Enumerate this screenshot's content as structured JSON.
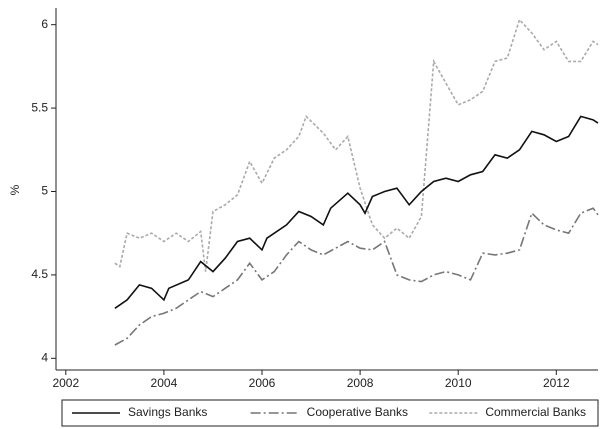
{
  "chart_data": {
    "type": "line",
    "ylabel": "%",
    "xlim": [
      2001.8,
      2012.85
    ],
    "xticks": [
      2002,
      2004,
      2006,
      2008,
      2010,
      2012
    ],
    "ylim": [
      3.93,
      6.1
    ],
    "yticks": [
      4,
      4.5,
      5,
      5.5,
      6
    ],
    "grid": false,
    "legend": "bottom",
    "series": [
      {
        "name": "Savings Banks",
        "color": "#111111",
        "style": "solid",
        "x": [
          2003.0,
          2003.25,
          2003.5,
          2003.75,
          2004.0,
          2004.1,
          2004.5,
          2004.75,
          2005.0,
          2005.25,
          2005.5,
          2005.75,
          2006.0,
          2006.1,
          2006.5,
          2006.75,
          2007.0,
          2007.25,
          2007.4,
          2007.75,
          2008.0,
          2008.1,
          2008.25,
          2008.5,
          2008.75,
          2009.0,
          2009.25,
          2009.5,
          2009.75,
          2010.0,
          2010.25,
          2010.5,
          2010.75,
          2011.0,
          2011.25,
          2011.5,
          2011.75,
          2012.0,
          2012.25,
          2012.5,
          2012.75,
          2012.85
        ],
        "values": [
          4.3,
          4.35,
          4.44,
          4.42,
          4.35,
          4.42,
          4.47,
          4.58,
          4.52,
          4.6,
          4.7,
          4.72,
          4.65,
          4.72,
          4.8,
          4.88,
          4.85,
          4.8,
          4.9,
          4.99,
          4.92,
          4.87,
          4.97,
          5.0,
          5.02,
          4.92,
          5.0,
          5.06,
          5.08,
          5.06,
          5.1,
          5.12,
          5.22,
          5.2,
          5.25,
          5.36,
          5.34,
          5.3,
          5.33,
          5.45,
          5.43,
          5.41
        ]
      },
      {
        "name": "Cooperative Banks",
        "color": "#777777",
        "style": "dashdot",
        "x": [
          2003.0,
          2003.25,
          2003.5,
          2003.75,
          2004.0,
          2004.25,
          2004.5,
          2004.75,
          2005.0,
          2005.25,
          2005.5,
          2005.75,
          2006.0,
          2006.25,
          2006.5,
          2006.75,
          2007.0,
          2007.25,
          2007.5,
          2007.75,
          2008.0,
          2008.25,
          2008.5,
          2008.75,
          2009.0,
          2009.25,
          2009.5,
          2009.75,
          2010.0,
          2010.25,
          2010.5,
          2010.75,
          2011.0,
          2011.25,
          2011.5,
          2011.75,
          2012.0,
          2012.25,
          2012.5,
          2012.75,
          2012.85
        ],
        "values": [
          4.08,
          4.12,
          4.2,
          4.25,
          4.27,
          4.3,
          4.35,
          4.4,
          4.37,
          4.42,
          4.47,
          4.57,
          4.47,
          4.52,
          4.62,
          4.7,
          4.65,
          4.62,
          4.66,
          4.7,
          4.66,
          4.65,
          4.7,
          4.5,
          4.47,
          4.46,
          4.5,
          4.52,
          4.5,
          4.47,
          4.63,
          4.62,
          4.63,
          4.65,
          4.87,
          4.8,
          4.77,
          4.75,
          4.87,
          4.9,
          4.86
        ]
      },
      {
        "name": "Commercial Banks",
        "color": "#aaaaaa",
        "style": "dot",
        "x": [
          2003.0,
          2003.1,
          2003.25,
          2003.5,
          2003.75,
          2004.0,
          2004.25,
          2004.5,
          2004.75,
          2004.85,
          2005.0,
          2005.25,
          2005.5,
          2005.75,
          2006.0,
          2006.25,
          2006.5,
          2006.75,
          2006.9,
          2007.25,
          2007.5,
          2007.75,
          2008.0,
          2008.25,
          2008.5,
          2008.75,
          2009.0,
          2009.25,
          2009.5,
          2009.75,
          2010.0,
          2010.25,
          2010.5,
          2010.75,
          2011.0,
          2011.25,
          2011.5,
          2011.75,
          2012.0,
          2012.25,
          2012.5,
          2012.75,
          2012.85
        ],
        "values": [
          4.57,
          4.55,
          4.75,
          4.72,
          4.75,
          4.7,
          4.75,
          4.7,
          4.76,
          4.52,
          4.88,
          4.92,
          4.98,
          5.18,
          5.05,
          5.2,
          5.25,
          5.33,
          5.45,
          5.35,
          5.25,
          5.33,
          5.02,
          4.8,
          4.72,
          4.78,
          4.72,
          4.85,
          5.78,
          5.65,
          5.52,
          5.55,
          5.6,
          5.78,
          5.8,
          6.03,
          5.95,
          5.85,
          5.9,
          5.78,
          5.78,
          5.9,
          5.88
        ]
      }
    ]
  }
}
